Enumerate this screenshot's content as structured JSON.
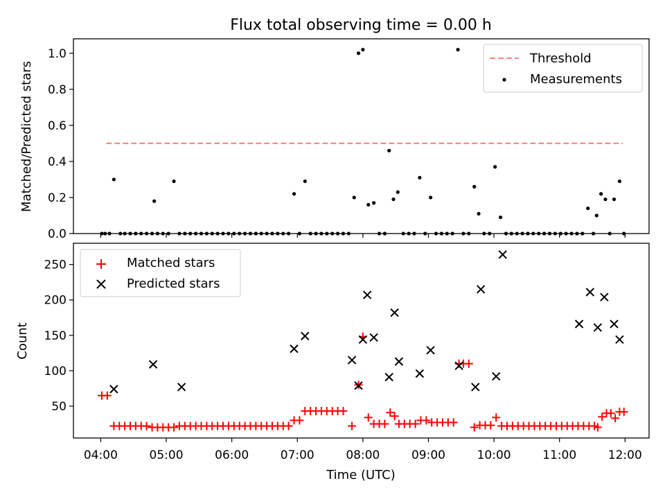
{
  "figure_title": "Flux total observing time = 0.00 h",
  "colors": {
    "threshold": "#ff7f7f",
    "measurements": "#000000",
    "matched": "#ff0000",
    "predicted": "#000000"
  },
  "chart_data": [
    {
      "type": "scatter",
      "panel": "top",
      "title": "Flux total observing time = 0.00 h",
      "xlabel": "",
      "ylabel": "Matched/Predicted stars",
      "xlim": [
        "03:35",
        "12:22"
      ],
      "ylim": [
        0,
        1.08
      ],
      "y_ticks": [
        "0.0",
        "0.2",
        "0.4",
        "0.6",
        "0.8",
        "1.0"
      ],
      "grid": false,
      "legend": {
        "placement": "upper right",
        "entries": [
          "Threshold",
          "Measurements"
        ]
      },
      "threshold": {
        "name": "Threshold",
        "style": "dashed",
        "x": [
          "04:05",
          "11:58"
        ],
        "y": 0.5
      },
      "series": [
        {
          "name": "Measurements",
          "points": [
            {
              "x": "04:01",
              "y": 0
            },
            {
              "x": "04:04",
              "y": 0
            },
            {
              "x": "04:08",
              "y": 0
            },
            {
              "x": "04:12",
              "y": 0.3
            },
            {
              "x": "04:18",
              "y": 0
            },
            {
              "x": "04:22",
              "y": 0
            },
            {
              "x": "04:27",
              "y": 0
            },
            {
              "x": "04:32",
              "y": 0
            },
            {
              "x": "04:37",
              "y": 0
            },
            {
              "x": "04:42",
              "y": 0
            },
            {
              "x": "04:47",
              "y": 0
            },
            {
              "x": "04:49",
              "y": 0.18
            },
            {
              "x": "04:52",
              "y": 0
            },
            {
              "x": "04:57",
              "y": 0
            },
            {
              "x": "05:02",
              "y": 0
            },
            {
              "x": "05:07",
              "y": 0.29
            },
            {
              "x": "05:12",
              "y": 0
            },
            {
              "x": "05:17",
              "y": 0
            },
            {
              "x": "05:22",
              "y": 0
            },
            {
              "x": "05:27",
              "y": 0
            },
            {
              "x": "05:32",
              "y": 0
            },
            {
              "x": "05:37",
              "y": 0
            },
            {
              "x": "05:42",
              "y": 0
            },
            {
              "x": "05:47",
              "y": 0
            },
            {
              "x": "05:52",
              "y": 0
            },
            {
              "x": "05:57",
              "y": 0
            },
            {
              "x": "06:02",
              "y": 0
            },
            {
              "x": "06:07",
              "y": 0
            },
            {
              "x": "06:12",
              "y": 0
            },
            {
              "x": "06:17",
              "y": 0
            },
            {
              "x": "06:22",
              "y": 0
            },
            {
              "x": "06:27",
              "y": 0
            },
            {
              "x": "06:32",
              "y": 0
            },
            {
              "x": "06:37",
              "y": 0
            },
            {
              "x": "06:42",
              "y": 0
            },
            {
              "x": "06:47",
              "y": 0
            },
            {
              "x": "06:52",
              "y": 0
            },
            {
              "x": "06:57",
              "y": 0.22
            },
            {
              "x": "07:02",
              "y": 0
            },
            {
              "x": "07:07",
              "y": 0.29
            },
            {
              "x": "07:12",
              "y": 0
            },
            {
              "x": "07:17",
              "y": 0
            },
            {
              "x": "07:22",
              "y": 0
            },
            {
              "x": "07:27",
              "y": 0
            },
            {
              "x": "07:32",
              "y": 0
            },
            {
              "x": "07:37",
              "y": 0
            },
            {
              "x": "07:42",
              "y": 0
            },
            {
              "x": "07:47",
              "y": 0
            },
            {
              "x": "07:52",
              "y": 0.2
            },
            {
              "x": "07:56",
              "y": 1.0
            },
            {
              "x": "08:00",
              "y": 1.02
            },
            {
              "x": "08:05",
              "y": 0.16
            },
            {
              "x": "08:10",
              "y": 0.17
            },
            {
              "x": "08:15",
              "y": 0
            },
            {
              "x": "08:20",
              "y": 0
            },
            {
              "x": "08:24",
              "y": 0.46
            },
            {
              "x": "08:28",
              "y": 0.19
            },
            {
              "x": "08:32",
              "y": 0.23
            },
            {
              "x": "08:37",
              "y": 0
            },
            {
              "x": "08:42",
              "y": 0
            },
            {
              "x": "08:47",
              "y": 0
            },
            {
              "x": "08:52",
              "y": 0.31
            },
            {
              "x": "08:57",
              "y": 0
            },
            {
              "x": "09:02",
              "y": 0.2
            },
            {
              "x": "09:07",
              "y": 0
            },
            {
              "x": "09:12",
              "y": 0
            },
            {
              "x": "09:17",
              "y": 0
            },
            {
              "x": "09:22",
              "y": 0
            },
            {
              "x": "09:27",
              "y": 1.02
            },
            {
              "x": "09:32",
              "y": 0
            },
            {
              "x": "09:37",
              "y": 0
            },
            {
              "x": "09:42",
              "y": 0.26
            },
            {
              "x": "09:46",
              "y": 0.11
            },
            {
              "x": "09:51",
              "y": 0
            },
            {
              "x": "09:56",
              "y": 0
            },
            {
              "x": "10:01",
              "y": 0.37
            },
            {
              "x": "10:06",
              "y": 0.09
            },
            {
              "x": "10:11",
              "y": 0
            },
            {
              "x": "10:16",
              "y": 0
            },
            {
              "x": "10:21",
              "y": 0
            },
            {
              "x": "10:26",
              "y": 0
            },
            {
              "x": "10:31",
              "y": 0
            },
            {
              "x": "10:36",
              "y": 0
            },
            {
              "x": "10:41",
              "y": 0
            },
            {
              "x": "10:46",
              "y": 0
            },
            {
              "x": "10:51",
              "y": 0
            },
            {
              "x": "10:56",
              "y": 0
            },
            {
              "x": "11:01",
              "y": 0
            },
            {
              "x": "11:06",
              "y": 0
            },
            {
              "x": "11:11",
              "y": 0
            },
            {
              "x": "11:16",
              "y": 0
            },
            {
              "x": "11:21",
              "y": 0
            },
            {
              "x": "11:26",
              "y": 0.14
            },
            {
              "x": "11:31",
              "y": 0
            },
            {
              "x": "11:34",
              "y": 0.1
            },
            {
              "x": "11:38",
              "y": 0.22
            },
            {
              "x": "11:42",
              "y": 0.19
            },
            {
              "x": "11:46",
              "y": 0
            },
            {
              "x": "11:50",
              "y": 0.19
            },
            {
              "x": "11:55",
              "y": 0.29
            },
            {
              "x": "11:59",
              "y": 0
            }
          ]
        }
      ]
    },
    {
      "type": "scatter",
      "panel": "bottom",
      "title": "",
      "xlabel": "Time (UTC)",
      "ylabel": "Count",
      "xlim": [
        "03:35",
        "12:22"
      ],
      "ylim": [
        5,
        280
      ],
      "x_ticks": [
        "04:00",
        "05:00",
        "06:00",
        "07:00",
        "08:00",
        "09:00",
        "10:00",
        "11:00",
        "12:00"
      ],
      "y_ticks": [
        "50",
        "100",
        "150",
        "200",
        "250"
      ],
      "grid": false,
      "legend": {
        "placement": "upper left",
        "entries": [
          "Matched stars",
          "Predicted stars"
        ]
      },
      "series": [
        {
          "name": "Matched stars",
          "marker": "+",
          "points": [
            {
              "x": "04:01",
              "y": 65
            },
            {
              "x": "04:06",
              "y": 65
            },
            {
              "x": "04:12",
              "y": 22
            },
            {
              "x": "04:17",
              "y": 22
            },
            {
              "x": "04:22",
              "y": 22
            },
            {
              "x": "04:27",
              "y": 22
            },
            {
              "x": "04:32",
              "y": 22
            },
            {
              "x": "04:37",
              "y": 22
            },
            {
              "x": "04:42",
              "y": 22
            },
            {
              "x": "04:47",
              "y": 20
            },
            {
              "x": "04:52",
              "y": 20
            },
            {
              "x": "04:57",
              "y": 20
            },
            {
              "x": "05:02",
              "y": 20
            },
            {
              "x": "05:07",
              "y": 20
            },
            {
              "x": "05:12",
              "y": 22
            },
            {
              "x": "05:17",
              "y": 22
            },
            {
              "x": "05:22",
              "y": 22
            },
            {
              "x": "05:27",
              "y": 22
            },
            {
              "x": "05:32",
              "y": 22
            },
            {
              "x": "05:37",
              "y": 22
            },
            {
              "x": "05:42",
              "y": 22
            },
            {
              "x": "05:47",
              "y": 22
            },
            {
              "x": "05:52",
              "y": 22
            },
            {
              "x": "05:57",
              "y": 22
            },
            {
              "x": "06:02",
              "y": 22
            },
            {
              "x": "06:07",
              "y": 22
            },
            {
              "x": "06:12",
              "y": 22
            },
            {
              "x": "06:17",
              "y": 22
            },
            {
              "x": "06:22",
              "y": 22
            },
            {
              "x": "06:27",
              "y": 22
            },
            {
              "x": "06:32",
              "y": 22
            },
            {
              "x": "06:37",
              "y": 22
            },
            {
              "x": "06:42",
              "y": 22
            },
            {
              "x": "06:47",
              "y": 22
            },
            {
              "x": "06:52",
              "y": 22
            },
            {
              "x": "06:57",
              "y": 30
            },
            {
              "x": "07:02",
              "y": 30
            },
            {
              "x": "07:07",
              "y": 43
            },
            {
              "x": "07:12",
              "y": 43
            },
            {
              "x": "07:17",
              "y": 43
            },
            {
              "x": "07:22",
              "y": 43
            },
            {
              "x": "07:27",
              "y": 43
            },
            {
              "x": "07:32",
              "y": 43
            },
            {
              "x": "07:37",
              "y": 43
            },
            {
              "x": "07:42",
              "y": 43
            },
            {
              "x": "07:50",
              "y": 22
            },
            {
              "x": "07:56",
              "y": 80
            },
            {
              "x": "08:00",
              "y": 148
            },
            {
              "x": "08:05",
              "y": 34
            },
            {
              "x": "08:10",
              "y": 25
            },
            {
              "x": "08:15",
              "y": 25
            },
            {
              "x": "08:20",
              "y": 25
            },
            {
              "x": "08:25",
              "y": 41
            },
            {
              "x": "08:29",
              "y": 36
            },
            {
              "x": "08:33",
              "y": 25
            },
            {
              "x": "08:38",
              "y": 25
            },
            {
              "x": "08:43",
              "y": 25
            },
            {
              "x": "08:48",
              "y": 25
            },
            {
              "x": "08:53",
              "y": 30
            },
            {
              "x": "08:58",
              "y": 30
            },
            {
              "x": "09:03",
              "y": 27
            },
            {
              "x": "09:08",
              "y": 27
            },
            {
              "x": "09:13",
              "y": 27
            },
            {
              "x": "09:18",
              "y": 27
            },
            {
              "x": "09:23",
              "y": 27
            },
            {
              "x": "09:28",
              "y": 110
            },
            {
              "x": "09:32",
              "y": 110
            },
            {
              "x": "09:37",
              "y": 110
            },
            {
              "x": "09:42",
              "y": 20
            },
            {
              "x": "09:47",
              "y": 23
            },
            {
              "x": "09:52",
              "y": 23
            },
            {
              "x": "09:57",
              "y": 23
            },
            {
              "x": "10:02",
              "y": 34
            },
            {
              "x": "10:07",
              "y": 22
            },
            {
              "x": "10:12",
              "y": 22
            },
            {
              "x": "10:17",
              "y": 22
            },
            {
              "x": "10:22",
              "y": 22
            },
            {
              "x": "10:27",
              "y": 22
            },
            {
              "x": "10:32",
              "y": 22
            },
            {
              "x": "10:37",
              "y": 22
            },
            {
              "x": "10:42",
              "y": 22
            },
            {
              "x": "10:47",
              "y": 22
            },
            {
              "x": "10:52",
              "y": 22
            },
            {
              "x": "10:57",
              "y": 22
            },
            {
              "x": "11:02",
              "y": 22
            },
            {
              "x": "11:07",
              "y": 22
            },
            {
              "x": "11:12",
              "y": 22
            },
            {
              "x": "11:17",
              "y": 22
            },
            {
              "x": "11:22",
              "y": 22
            },
            {
              "x": "11:27",
              "y": 22
            },
            {
              "x": "11:32",
              "y": 22
            },
            {
              "x": "11:35",
              "y": 20
            },
            {
              "x": "11:39",
              "y": 35
            },
            {
              "x": "11:43",
              "y": 40
            },
            {
              "x": "11:47",
              "y": 40
            },
            {
              "x": "11:51",
              "y": 33
            },
            {
              "x": "11:55",
              "y": 42
            },
            {
              "x": "11:59",
              "y": 42
            }
          ]
        },
        {
          "name": "Predicted stars",
          "marker": "x",
          "points": [
            {
              "x": "04:12",
              "y": 74
            },
            {
              "x": "04:48",
              "y": 109
            },
            {
              "x": "05:14",
              "y": 77
            },
            {
              "x": "06:57",
              "y": 131
            },
            {
              "x": "07:07",
              "y": 149
            },
            {
              "x": "07:50",
              "y": 115
            },
            {
              "x": "07:56",
              "y": 79
            },
            {
              "x": "08:00",
              "y": 144
            },
            {
              "x": "08:04",
              "y": 207
            },
            {
              "x": "08:10",
              "y": 147
            },
            {
              "x": "08:24",
              "y": 91
            },
            {
              "x": "08:29",
              "y": 182
            },
            {
              "x": "08:33",
              "y": 113
            },
            {
              "x": "08:52",
              "y": 96
            },
            {
              "x": "09:02",
              "y": 129
            },
            {
              "x": "09:28",
              "y": 107
            },
            {
              "x": "09:43",
              "y": 77
            },
            {
              "x": "09:48",
              "y": 215
            },
            {
              "x": "10:02",
              "y": 92
            },
            {
              "x": "10:08",
              "y": 264
            },
            {
              "x": "11:18",
              "y": 166
            },
            {
              "x": "11:28",
              "y": 211
            },
            {
              "x": "11:35",
              "y": 161
            },
            {
              "x": "11:41",
              "y": 204
            },
            {
              "x": "11:50",
              "y": 166
            },
            {
              "x": "11:55",
              "y": 144
            }
          ]
        }
      ]
    }
  ]
}
